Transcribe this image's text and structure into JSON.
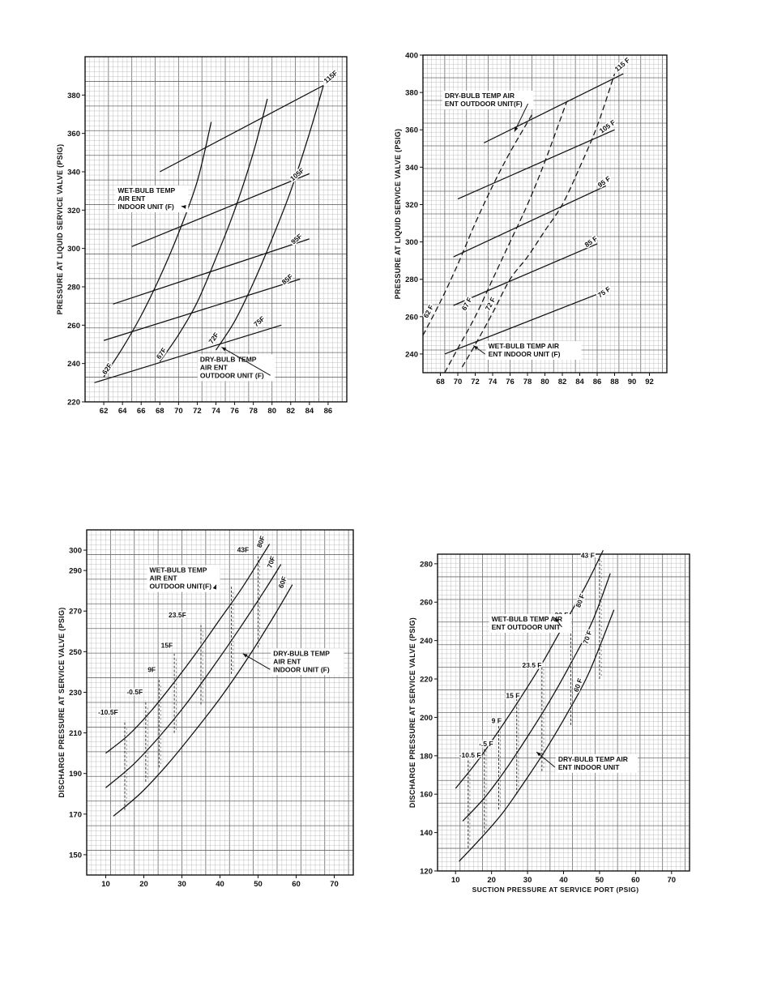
{
  "chart_data": [
    {
      "type": "line",
      "ylabel": "PRESSURE AT LIQUID SERVICE VALVE (PSIG)",
      "xlabel": "",
      "xlim": [
        60,
        88
      ],
      "ylim": [
        220,
        400
      ],
      "xticks": [
        62,
        64,
        66,
        68,
        70,
        72,
        74,
        76,
        78,
        80,
        82,
        84,
        86
      ],
      "yticks": [
        220,
        240,
        260,
        280,
        300,
        320,
        340,
        360,
        380
      ],
      "grid": true,
      "series": [
        {
          "name": "115F",
          "dash": false,
          "x": [
            68,
            85.5
          ],
          "y": [
            340,
            385
          ]
        },
        {
          "name": "105F",
          "dash": false,
          "x": [
            65,
            84
          ],
          "y": [
            301,
            339
          ]
        },
        {
          "name": "95F",
          "dash": false,
          "x": [
            63,
            84
          ],
          "y": [
            271,
            305
          ]
        },
        {
          "name": "85F",
          "dash": false,
          "x": [
            62,
            83
          ],
          "y": [
            252,
            284
          ]
        },
        {
          "name": "75F",
          "dash": false,
          "x": [
            61,
            81
          ],
          "y": [
            230,
            260
          ]
        },
        {
          "name": "62F",
          "dash": false,
          "x": [
            62,
            64,
            66,
            68,
            70,
            72,
            73.5
          ],
          "y": [
            233,
            248,
            265,
            285,
            308,
            335,
            366
          ]
        },
        {
          "name": "67F",
          "dash": false,
          "x": [
            68,
            70,
            72,
            74,
            76,
            78,
            79.5
          ],
          "y": [
            241,
            255,
            272,
            295,
            320,
            350,
            378
          ]
        },
        {
          "name": "72F",
          "dash": false,
          "x": [
            74,
            76,
            78,
            80,
            82,
            84,
            85.5
          ],
          "y": [
            247,
            262,
            282,
            305,
            330,
            360,
            385
          ]
        }
      ],
      "labels": [
        {
          "text": "115F",
          "x": 85.8,
          "y": 386,
          "rot": -40
        },
        {
          "text": "105F",
          "x": 82.2,
          "y": 335,
          "rot": -40
        },
        {
          "text": "95F",
          "x": 82.3,
          "y": 302,
          "rot": -40
        },
        {
          "text": "85F",
          "x": 81.3,
          "y": 281,
          "rot": -40
        },
        {
          "text": "75F",
          "x": 78.3,
          "y": 259,
          "rot": -40
        },
        {
          "text": "62F",
          "x": 62.2,
          "y": 234,
          "rot": -55
        },
        {
          "text": "67F",
          "x": 68.0,
          "y": 242,
          "rot": -55
        },
        {
          "text": "72F",
          "x": 73.6,
          "y": 250,
          "rot": -55
        }
      ],
      "annotations": [
        {
          "lines": [
            "WET-BULB TEMP",
            "AIR ENT",
            "INDOOR UNIT (F)"
          ],
          "x": 63.5,
          "y": 329,
          "ax": 70.3,
          "ay": 322
        },
        {
          "lines": [
            "DRY-BULB TEMP",
            "AIR ENT",
            "OUTDOOR UNIT (F)"
          ],
          "x": 72.3,
          "y": 241,
          "ax": 74.6,
          "ay": 248.5
        }
      ]
    },
    {
      "type": "line",
      "ylabel": "PRESSURE AT LIQUID SERVICE VALVE (PSIG)",
      "xlabel": "",
      "xlim": [
        66,
        94
      ],
      "ylim": [
        230,
        400
      ],
      "xticks": [
        68,
        70,
        72,
        74,
        76,
        78,
        80,
        82,
        84,
        86,
        88,
        90,
        92
      ],
      "yticks": [
        240,
        260,
        280,
        300,
        320,
        340,
        360,
        380,
        400
      ],
      "grid": true,
      "series": [
        {
          "name": "115F",
          "dash": false,
          "x": [
            73,
            89
          ],
          "y": [
            353,
            390
          ]
        },
        {
          "name": "105F",
          "dash": false,
          "x": [
            70,
            88
          ],
          "y": [
            323,
            360
          ]
        },
        {
          "name": "95F",
          "dash": false,
          "x": [
            69.5,
            87
          ],
          "y": [
            292,
            330
          ]
        },
        {
          "name": "85F",
          "dash": false,
          "x": [
            69.5,
            86
          ],
          "y": [
            266,
            299
          ]
        },
        {
          "name": "75F",
          "dash": false,
          "x": [
            68.5,
            86
          ],
          "y": [
            240,
            272
          ]
        },
        {
          "name": "62F",
          "dash": true,
          "x": [
            66,
            68,
            70,
            72,
            74,
            76,
            78.5
          ],
          "y": [
            250,
            268,
            288,
            310,
            330,
            348,
            368
          ]
        },
        {
          "name": "67F",
          "dash": true,
          "x": [
            68.5,
            70,
            72,
            74,
            76,
            78,
            80,
            82.5
          ],
          "y": [
            230,
            243,
            260,
            280,
            300,
            320,
            343,
            375
          ]
        },
        {
          "name": "72F",
          "dash": true,
          "x": [
            70.5,
            72,
            74,
            76,
            78,
            80,
            82,
            84,
            86,
            88
          ],
          "y": [
            233,
            245,
            262,
            280,
            292,
            306,
            320,
            340,
            362,
            390
          ]
        }
      ],
      "labels": [
        {
          "text": "115 F",
          "x": 88.3,
          "y": 391,
          "rot": -40
        },
        {
          "text": "105 F",
          "x": 86.5,
          "y": 358,
          "rot": -35
        },
        {
          "text": "95 F",
          "x": 86.3,
          "y": 329,
          "rot": -35
        },
        {
          "text": "85 F",
          "x": 84.8,
          "y": 297,
          "rot": -35
        },
        {
          "text": "75 F",
          "x": 86.3,
          "y": 270,
          "rot": -35
        },
        {
          "text": "62 F",
          "x": 66.5,
          "y": 259,
          "rot": -62
        },
        {
          "text": "67 F",
          "x": 70.9,
          "y": 263,
          "rot": -62
        },
        {
          "text": "72 F",
          "x": 73.6,
          "y": 263,
          "rot": -62
        }
      ],
      "annotations": [
        {
          "lines": [
            "DRY-BULB TEMP AIR",
            "ENT OUTDOOR UNIT(F)"
          ],
          "x": 68.5,
          "y": 377,
          "ax": 76.5,
          "ay": 359
        },
        {
          "lines": [
            "WET-BULB TEMP AIR",
            "ENT  INDOOR UNIT (F)"
          ],
          "x": 73.5,
          "y": 243,
          "ax": 71.8,
          "ay": 244.5
        }
      ]
    },
    {
      "type": "line",
      "ylabel": "DISCHARGE PRESSURE AT SERVICE VALVE (PSIG)",
      "xlabel": "",
      "xlim": [
        5,
        75
      ],
      "ylim": [
        140,
        310
      ],
      "xticks": [
        10,
        20,
        30,
        40,
        50,
        60,
        70
      ],
      "yticks": [
        150,
        170,
        190,
        210,
        230,
        250,
        270,
        290,
        300
      ],
      "grid": true,
      "series": [
        {
          "name": "80F",
          "dash": false,
          "x": [
            10,
            16,
            22,
            28,
            34,
            40,
            46,
            53
          ],
          "y": [
            200,
            209,
            221,
            235,
            250,
            266,
            282,
            303
          ]
        },
        {
          "name": "70F",
          "dash": false,
          "x": [
            10,
            17,
            24,
            31,
            38,
            45,
            52,
            56
          ],
          "y": [
            183,
            194,
            208,
            224,
            242,
            261,
            281,
            293
          ]
        },
        {
          "name": "60F",
          "dash": false,
          "x": [
            12,
            19,
            26,
            33,
            40,
            47,
            54,
            59
          ],
          "y": [
            169,
            180,
            194,
            210,
            227,
            246,
            267,
            283
          ]
        }
      ],
      "verticals": [
        {
          "text": "43F",
          "x": 50,
          "y0": 252,
          "y1": 297,
          "tx": 44.5,
          "ty": 299
        },
        {
          "text": "33F",
          "x": 43,
          "y0": 239,
          "y1": 282,
          "tx": 36.5,
          "ty": 285
        },
        {
          "text": "23.5F",
          "x": 35,
          "y0": 224,
          "y1": 264,
          "tx": 26.5,
          "ty": 267
        },
        {
          "text": "15F",
          "x": 28,
          "y0": 210,
          "y1": 249,
          "tx": 24.5,
          "ty": 252
        },
        {
          "text": "9F",
          "x": 24,
          "y0": 193,
          "y1": 237,
          "tx": 21.0,
          "ty": 240
        },
        {
          "text": "-0.5F",
          "x": 20.5,
          "y0": 186,
          "y1": 226,
          "tx": 15.5,
          "ty": 229
        },
        {
          "text": "-10.5F",
          "x": 15,
          "y0": 172,
          "y1": 216,
          "tx": 8.0,
          "ty": 219
        }
      ],
      "labels": [
        {
          "text": "80F",
          "x": 50.8,
          "y": 301,
          "rot": -70
        },
        {
          "text": "70F",
          "x": 53.5,
          "y": 291,
          "rot": -70
        },
        {
          "text": "60F",
          "x": 56.5,
          "y": 281,
          "rot": -70
        }
      ],
      "annotations": [
        {
          "lines": [
            "WET-BULB TEMP",
            "AIR ENT",
            "OUTDOOR UNIT(F)"
          ],
          "x": 21.5,
          "y": 289,
          "ax": 39.0,
          "ay": 283
        },
        {
          "lines": [
            "DRY-BULB TEMP",
            "AIR ENT",
            "INDOOR UNIT (F)"
          ],
          "x": 54.0,
          "y": 248,
          "ax": 46.0,
          "ay": 249
        }
      ]
    },
    {
      "type": "line",
      "ylabel": "DISCHARGE PRESSURE AT SERVICE VALVE (PSIG)",
      "xlabel": "SUCTION PRESSURE AT SERVICE PORT (PSIG)",
      "xlim": [
        5,
        75
      ],
      "ylim": [
        120,
        285
      ],
      "xticks": [
        10,
        20,
        30,
        40,
        50,
        60,
        70
      ],
      "yticks": [
        120,
        140,
        160,
        180,
        200,
        220,
        240,
        260,
        280
      ],
      "grid": true,
      "series": [
        {
          "name": "80F",
          "dash": false,
          "x": [
            10,
            16,
            22,
            28,
            34,
            40,
            46,
            51
          ],
          "y": [
            163,
            177,
            193,
            210,
            228,
            248,
            268,
            287
          ]
        },
        {
          "name": "70F",
          "dash": false,
          "x": [
            12,
            18,
            24,
            30,
            36,
            42,
            48,
            53
          ],
          "y": [
            146,
            158,
            173,
            190,
            208,
            228,
            250,
            275
          ]
        },
        {
          "name": "60F",
          "dash": false,
          "x": [
            11,
            17,
            23,
            29,
            35,
            41,
            47,
            54
          ],
          "y": [
            125,
            137,
            150,
            166,
            183,
            202,
            223,
            256
          ]
        }
      ],
      "verticals": [
        {
          "text": "43 F",
          "x": 50,
          "y0": 220,
          "y1": 284,
          "tx": 44.8,
          "ty": 283
        },
        {
          "text": "33 F",
          "x": 42,
          "y0": 196,
          "y1": 254,
          "tx": 37.5,
          "ty": 252
        },
        {
          "text": "23.5 F",
          "x": 34,
          "y0": 172,
          "y1": 228,
          "tx": 28.5,
          "ty": 226
        },
        {
          "text": "15 F",
          "x": 27,
          "y0": 160,
          "y1": 211,
          "tx": 24.0,
          "ty": 210
        },
        {
          "text": "9 F",
          "x": 22,
          "y0": 152,
          "y1": 198,
          "tx": 20.0,
          "ty": 197
        },
        {
          "text": "-.5 F",
          "x": 18,
          "y0": 140,
          "y1": 186,
          "tx": 16.5,
          "ty": 185
        },
        {
          "text": "-10.5 F",
          "x": 13.5,
          "y0": 132,
          "y1": 180,
          "tx": 11.0,
          "ty": 179
        }
      ],
      "labels": [
        {
          "text": "80 F",
          "x": 44.6,
          "y": 257,
          "rot": -70
        },
        {
          "text": "70 F",
          "x": 46.6,
          "y": 238,
          "rot": -70
        },
        {
          "text": "60 F",
          "x": 44.0,
          "y": 213,
          "rot": -70
        }
      ],
      "annotations": [
        {
          "lines": [
            "WET-BULB TEMP AIR",
            "ENT OUTDOOR UNIT"
          ],
          "x": 20.0,
          "y": 250,
          "ax": 37.5,
          "ay": 252
        },
        {
          "lines": [
            "DRY-BULB TEMP AIR",
            "ENT INDOOR UNIT"
          ],
          "x": 38.5,
          "y": 177,
          "ax": 32.5,
          "ay": 182
        }
      ]
    }
  ]
}
